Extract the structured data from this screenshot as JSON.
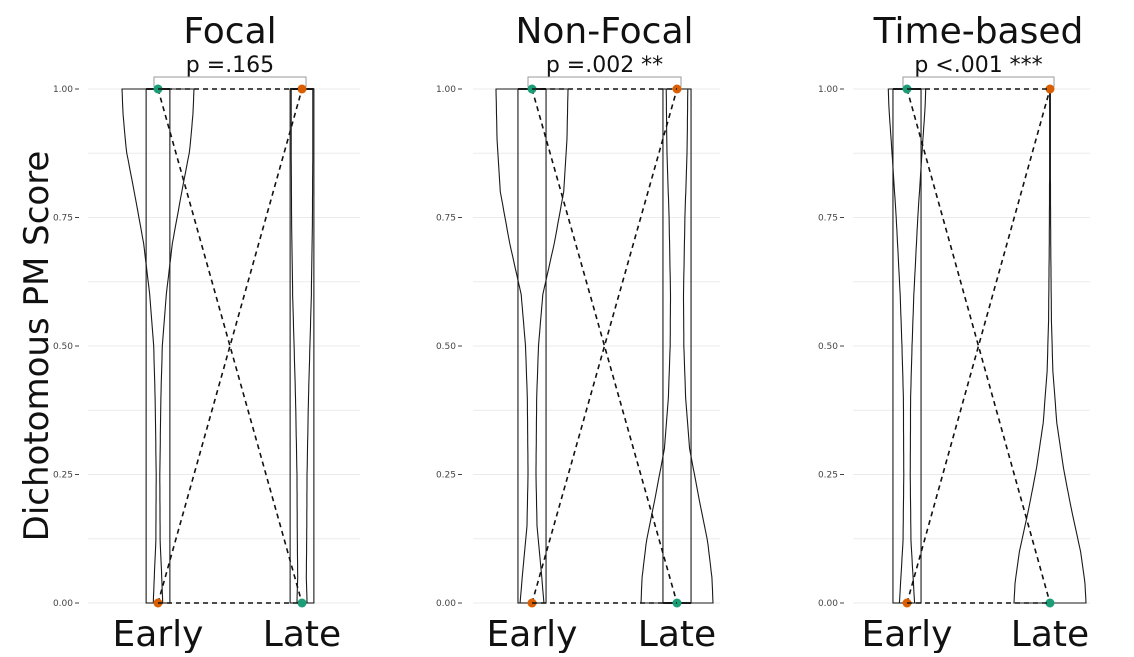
{
  "ylabel": "Dichotomous PM Score",
  "chart_data": [
    {
      "type": "violin",
      "title": "Focal",
      "annotation": "p =.165",
      "categories": [
        "Early",
        "Late"
      ],
      "ylim": [
        0,
        1
      ],
      "yticks": [
        "0.00",
        "0.25",
        "0.50",
        "0.75",
        "1.00"
      ],
      "grid": true,
      "series": [
        {
          "values": [
            1.0,
            0.0
          ],
          "color": "#1b9e77"
        },
        {
          "values": [
            0.0,
            1.0
          ],
          "color": "#d95f02"
        }
      ],
      "violin_widths": [
        [
          [
            0.0,
            0.13
          ],
          [
            0.04,
            0.11
          ],
          [
            0.12,
            0.06
          ],
          [
            0.25,
            0.05
          ],
          [
            0.4,
            0.08
          ],
          [
            0.5,
            0.12
          ],
          [
            0.6,
            0.23
          ],
          [
            0.7,
            0.4
          ],
          [
            0.8,
            0.66
          ],
          [
            0.88,
            0.88
          ],
          [
            0.95,
            0.97
          ],
          [
            1.0,
            1.0
          ]
        ],
        [
          [
            0.0,
            0.14
          ],
          [
            0.05,
            0.12
          ],
          [
            0.12,
            0.13
          ],
          [
            0.25,
            0.14
          ],
          [
            0.4,
            0.18
          ],
          [
            0.5,
            0.22
          ],
          [
            0.6,
            0.26
          ],
          [
            0.75,
            0.29
          ],
          [
            0.88,
            0.3
          ],
          [
            0.96,
            0.3
          ],
          [
            1.0,
            0.3
          ]
        ]
      ],
      "boxes": [
        {
          "q1": 0.0,
          "median": 1.0,
          "q3": 1.0,
          "width_frac": 0.33
        },
        {
          "q1": 0.0,
          "median": 1.0,
          "q3": 1.0,
          "width_frac": 0.33
        }
      ]
    },
    {
      "type": "violin",
      "title": "Non-Focal",
      "annotation": "p =.002 **",
      "categories": [
        "Early",
        "Late"
      ],
      "ylim": [
        0,
        1
      ],
      "yticks": [
        "0.00",
        "0.25",
        "0.50",
        "0.75",
        "1.00"
      ],
      "grid": true,
      "series": [
        {
          "values": [
            1.0,
            0.0
          ],
          "color": "#1b9e77"
        },
        {
          "values": [
            0.0,
            1.0
          ],
          "color": "#d95f02"
        }
      ],
      "violin_widths": [
        [
          [
            0.0,
            0.33
          ],
          [
            0.06,
            0.26
          ],
          [
            0.15,
            0.14
          ],
          [
            0.25,
            0.11
          ],
          [
            0.4,
            0.13
          ],
          [
            0.5,
            0.18
          ],
          [
            0.6,
            0.3
          ],
          [
            0.7,
            0.62
          ],
          [
            0.8,
            0.88
          ],
          [
            0.9,
            0.97
          ],
          [
            1.0,
            1.0
          ]
        ],
        [
          [
            0.0,
            1.0
          ],
          [
            0.05,
            0.97
          ],
          [
            0.12,
            0.85
          ],
          [
            0.2,
            0.62
          ],
          [
            0.3,
            0.35
          ],
          [
            0.4,
            0.24
          ],
          [
            0.5,
            0.19
          ],
          [
            0.6,
            0.18
          ],
          [
            0.75,
            0.22
          ],
          [
            0.88,
            0.28
          ],
          [
            1.0,
            0.3
          ]
        ]
      ],
      "boxes": [
        {
          "q1": 0.0,
          "median": 1.0,
          "q3": 1.0,
          "width_frac": 0.39
        },
        {
          "q1": 0.0,
          "median": 0.0,
          "q3": 1.0,
          "width_frac": 0.39
        }
      ]
    },
    {
      "type": "violin",
      "title": "Time-based",
      "annotation": "p <.001 ***",
      "categories": [
        "Early",
        "Late"
      ],
      "ylim": [
        0,
        1
      ],
      "yticks": [
        "0.00",
        "0.25",
        "0.50",
        "0.75",
        "1.00"
      ],
      "grid": true,
      "series": [
        {
          "values": [
            1.0,
            0.0
          ],
          "color": "#1b9e77"
        },
        {
          "values": [
            0.0,
            1.0
          ],
          "color": "#d95f02"
        }
      ],
      "violin_widths": [
        [
          [
            0.0,
            0.21
          ],
          [
            0.05,
            0.17
          ],
          [
            0.12,
            0.11
          ],
          [
            0.25,
            0.09
          ],
          [
            0.4,
            0.1
          ],
          [
            0.5,
            0.14
          ],
          [
            0.6,
            0.19
          ],
          [
            0.75,
            0.3
          ],
          [
            0.88,
            0.42
          ],
          [
            0.96,
            0.5
          ],
          [
            1.0,
            0.52
          ]
        ],
        [
          [
            0.0,
            1.0
          ],
          [
            0.04,
            0.97
          ],
          [
            0.1,
            0.85
          ],
          [
            0.18,
            0.6
          ],
          [
            0.26,
            0.38
          ],
          [
            0.35,
            0.19
          ],
          [
            0.45,
            0.08
          ],
          [
            0.55,
            0.04
          ],
          [
            0.7,
            0.02
          ],
          [
            0.85,
            0.01
          ],
          [
            1.0,
            0.01
          ]
        ]
      ],
      "boxes": [
        {
          "q1": 0.0,
          "median": 1.0,
          "q3": 1.0,
          "width_frac": 0.39
        },
        null
      ]
    }
  ]
}
